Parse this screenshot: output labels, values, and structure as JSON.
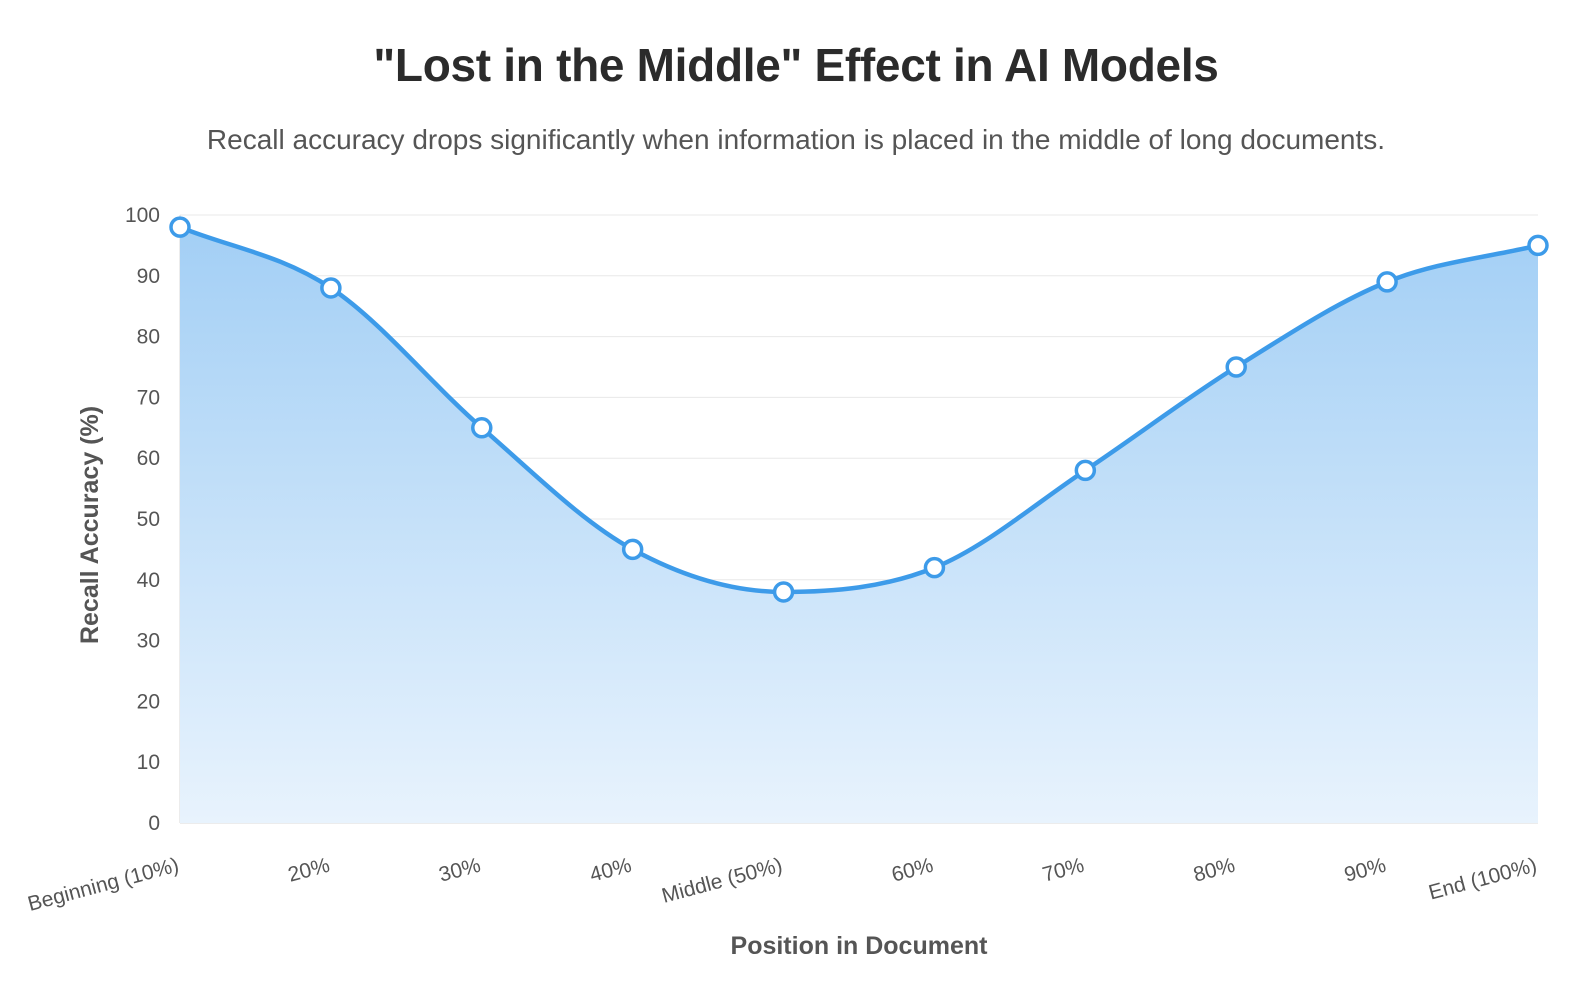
{
  "title": "\"Lost in the Middle\" Effect in AI Models",
  "subtitle": "Recall accuracy drops significantly when information is placed in the middle of long documents.",
  "chart_data": {
    "type": "area",
    "categories": [
      "Beginning (10%)",
      "20%",
      "30%",
      "40%",
      "Middle (50%)",
      "60%",
      "70%",
      "80%",
      "90%",
      "End (100%)"
    ],
    "values": [
      98,
      88,
      65,
      45,
      38,
      42,
      58,
      75,
      89,
      95
    ],
    "xlabel": "Position in Document",
    "ylabel": "Recall Accuracy (%)",
    "ylim": [
      0,
      100
    ],
    "yticks": [
      0,
      10,
      20,
      30,
      40,
      50,
      60,
      70,
      80,
      90,
      100
    ],
    "grid": true,
    "legend": "none",
    "colors": {
      "line": "#3d9be9",
      "fill_top": "#a3cff5",
      "fill_bottom": "#e8f3fd",
      "marker_fill": "#ffffff",
      "grid": "#e8e8e8"
    }
  }
}
